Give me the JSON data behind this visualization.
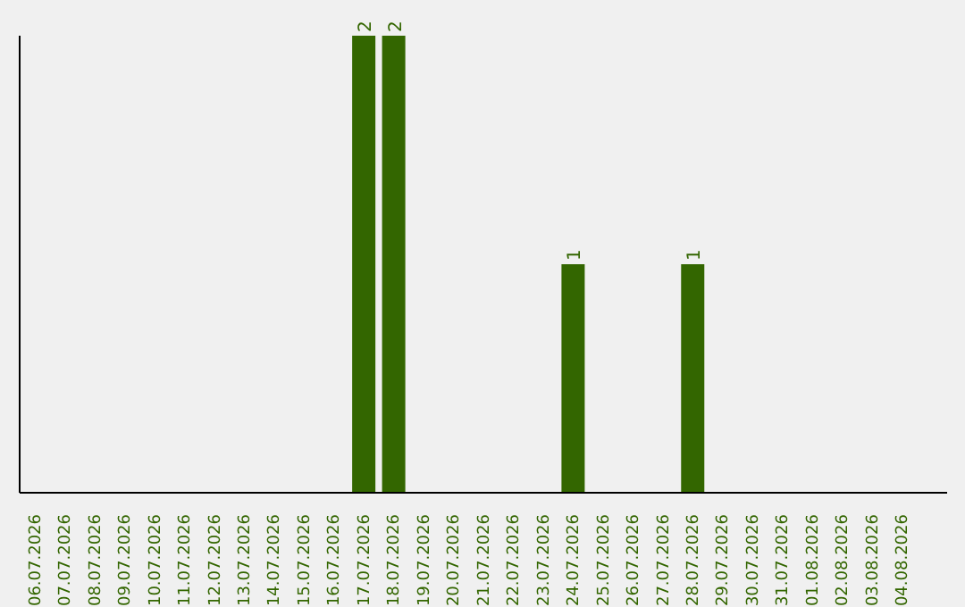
{
  "chart_data": {
    "type": "bar",
    "categories": [
      "06.07.2026",
      "07.07.2026",
      "08.07.2026",
      "09.07.2026",
      "10.07.2026",
      "11.07.2026",
      "12.07.2026",
      "13.07.2026",
      "14.07.2026",
      "15.07.2026",
      "16.07.2026",
      "17.07.2026",
      "18.07.2026",
      "19.07.2026",
      "20.07.2026",
      "21.07.2026",
      "22.07.2026",
      "23.07.2026",
      "24.07.2026",
      "25.07.2026",
      "26.07.2026",
      "27.07.2026",
      "28.07.2026",
      "29.07.2026",
      "30.07.2026",
      "31.07.2026",
      "01.08.2026",
      "02.08.2026",
      "03.08.2026",
      "04.08.2026"
    ],
    "values": [
      0,
      0,
      0,
      0,
      0,
      0,
      0,
      0,
      0,
      0,
      0,
      2,
      2,
      0,
      0,
      0,
      0,
      0,
      1,
      0,
      0,
      0,
      1,
      0,
      0,
      0,
      0,
      0,
      0,
      0
    ],
    "value_labels": [
      null,
      null,
      null,
      null,
      null,
      null,
      null,
      null,
      null,
      null,
      null,
      "2",
      "2",
      null,
      null,
      null,
      null,
      null,
      "1",
      null,
      null,
      null,
      "1",
      null,
      null,
      null,
      null,
      null,
      null,
      null
    ],
    "color": "#336600",
    "grid": false,
    "legend": false
  }
}
